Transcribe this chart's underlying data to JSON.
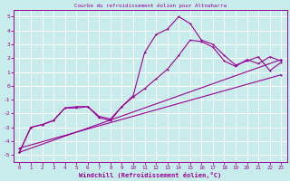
{
  "title": "Courbe du refroidissement éolien pour Altnaharra",
  "xlabel": "Windchill (Refroidissement éolien,°C)",
  "bg_color": "#c8ecec",
  "grid_color": "#ffffff",
  "line_color": "#990099",
  "xlim": [
    -0.5,
    23.5
  ],
  "ylim": [
    -5.5,
    5.5
  ],
  "xticks": [
    0,
    1,
    2,
    3,
    4,
    5,
    6,
    7,
    8,
    9,
    10,
    11,
    12,
    13,
    14,
    15,
    16,
    17,
    18,
    19,
    20,
    21,
    22,
    23
  ],
  "yticks": [
    -5,
    -4,
    -3,
    -2,
    -1,
    0,
    1,
    2,
    3,
    4,
    5
  ],
  "trend1_x": [
    0,
    23
  ],
  "trend1_y": [
    -4.8,
    1.9
  ],
  "trend2_x": [
    0,
    23
  ],
  "trend2_y": [
    -4.5,
    0.8
  ],
  "series_wavy_x": [
    0,
    1,
    2,
    3,
    4,
    5,
    6,
    7,
    8,
    9,
    10,
    11,
    12,
    13,
    14,
    15,
    16,
    17,
    18,
    19,
    20,
    21,
    22,
    23
  ],
  "series_wavy_y": [
    -4.8,
    -3.0,
    -2.8,
    -2.5,
    -1.6,
    -1.6,
    -1.5,
    -2.3,
    -2.5,
    -1.5,
    -0.8,
    -0.2,
    0.5,
    1.2,
    2.2,
    3.3,
    3.2,
    2.8,
    1.8,
    1.4,
    1.9,
    1.6,
    2.1,
    1.8
  ],
  "series_main_x": [
    0,
    1,
    2,
    3,
    4,
    5,
    6,
    7,
    8,
    9,
    10,
    11,
    12,
    13,
    14,
    15,
    16,
    17,
    18,
    19,
    20,
    21,
    22,
    23
  ],
  "series_main_y": [
    -4.8,
    -3.0,
    -2.8,
    -2.5,
    -1.6,
    -1.5,
    -1.5,
    -2.2,
    -2.4,
    -1.5,
    -0.7,
    2.4,
    3.7,
    4.1,
    5.0,
    4.5,
    3.3,
    3.0,
    2.2,
    1.5,
    1.8,
    2.1,
    1.1,
    1.7
  ]
}
